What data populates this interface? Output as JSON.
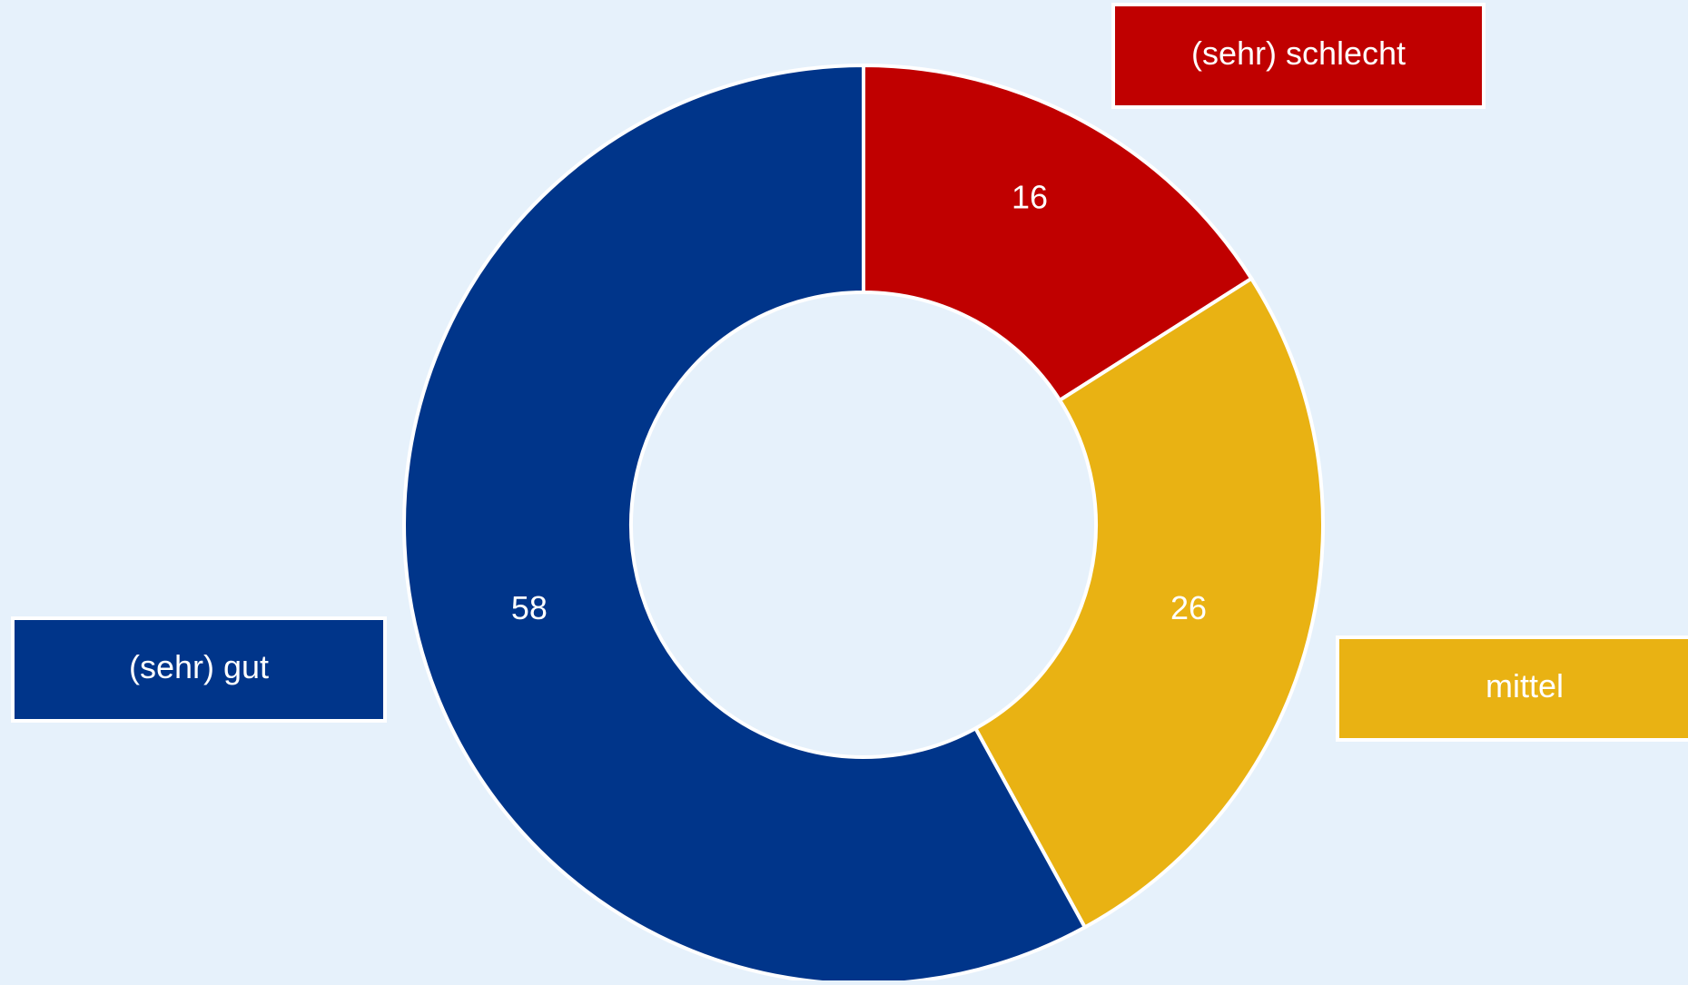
{
  "chart_data": {
    "type": "pie",
    "donut": true,
    "title": "",
    "categories": [
      "(sehr) schlecht",
      "mittel",
      "(sehr) gut"
    ],
    "values": [
      16,
      26,
      58
    ],
    "colors": [
      "#c00000",
      "#e9b213",
      "#00358a"
    ],
    "data_labels": [
      "16",
      "26",
      "58"
    ],
    "background": "#e6f1fb",
    "label_text_color": "#ffffff",
    "start_angle": "top",
    "direction": "clockwise",
    "legend": "callout labels beside segments"
  }
}
